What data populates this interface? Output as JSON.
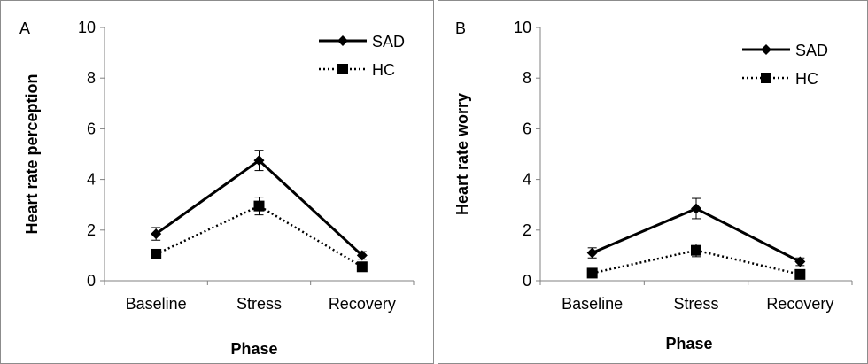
{
  "chart_data": [
    {
      "type": "line",
      "panel_label": "A",
      "categories": [
        "Baseline",
        "Stress",
        "Recovery"
      ],
      "ylabel": "Heart rate perception",
      "xlabel": "Phase",
      "ylim": [
        0,
        10
      ],
      "yticks": [
        "0",
        "2",
        "4",
        "6",
        "8",
        "10"
      ],
      "grid": false,
      "legend": "top-right",
      "series": [
        {
          "name": "SAD",
          "values": [
            1.85,
            4.75,
            1.0
          ],
          "errors": [
            0.25,
            0.4,
            0.15
          ],
          "marker": "diamond",
          "line": "solid",
          "color": "#000000"
        },
        {
          "name": "HC",
          "values": [
            1.05,
            2.95,
            0.55
          ],
          "errors": [
            0.15,
            0.35,
            0.15
          ],
          "marker": "square",
          "line": "dotted",
          "color": "#000000"
        }
      ]
    },
    {
      "type": "line",
      "panel_label": "B",
      "categories": [
        "Baseline",
        "Stress",
        "Recovery"
      ],
      "ylabel": "Heart rate worry",
      "xlabel": "Phase",
      "ylim": [
        0,
        10
      ],
      "yticks": [
        "0",
        "2",
        "4",
        "6",
        "8",
        "10"
      ],
      "grid": false,
      "legend": "top-right",
      "series": [
        {
          "name": "SAD",
          "values": [
            1.1,
            2.85,
            0.75
          ],
          "errors": [
            0.2,
            0.4,
            0.15
          ],
          "marker": "diamond",
          "line": "solid",
          "color": "#000000"
        },
        {
          "name": "HC",
          "values": [
            0.3,
            1.2,
            0.25
          ],
          "errors": [
            0.1,
            0.25,
            0.1
          ],
          "marker": "square",
          "line": "dotted",
          "color": "#000000"
        }
      ]
    }
  ]
}
